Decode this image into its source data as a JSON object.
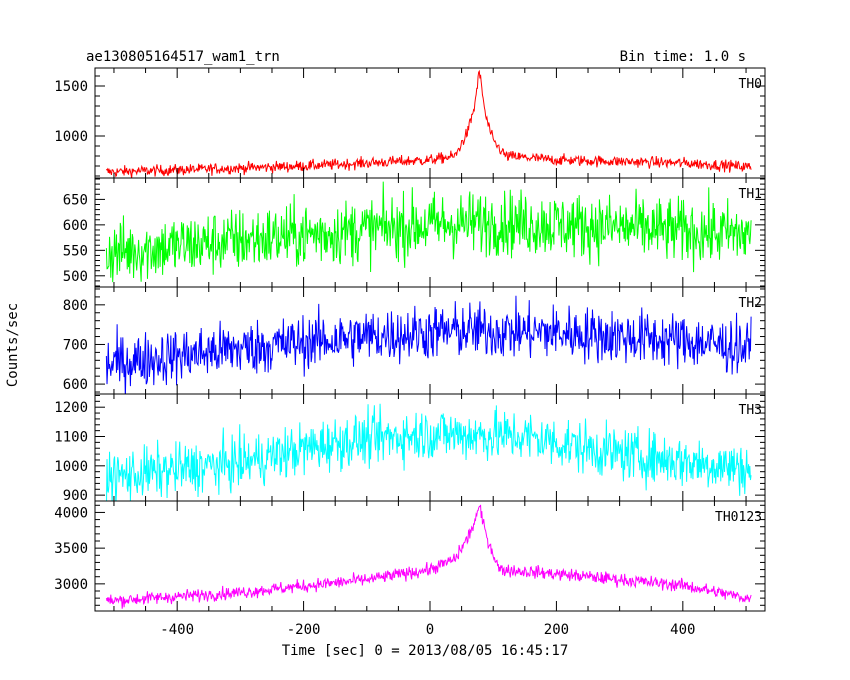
{
  "header": {
    "title": "ae130805164517_wam1_trn",
    "bin_time": "Bin time: 1.0 s"
  },
  "chart_data": {
    "type": "line",
    "title": "ae130805164517_wam1_trn",
    "xlabel": "Time [sec] 0 = 2013/08/05 16:45:17",
    "ylabel": "Counts/sec",
    "xlim": [
      -530,
      530
    ],
    "xticks": [
      -400,
      -200,
      0,
      200,
      400
    ],
    "x_sampling": {
      "start": -512,
      "end": 508,
      "step": 1
    },
    "panels": [
      {
        "label": "TH0",
        "color": "#ff0000",
        "ylim": [
          580,
          1680
        ],
        "yticks": [
          1000,
          1500
        ],
        "trend": [
          [
            -512,
            640
          ],
          [
            -400,
            660
          ],
          [
            -200,
            700
          ],
          [
            0,
            760
          ],
          [
            40,
            800
          ],
          [
            60,
            1050
          ],
          [
            70,
            1280
          ],
          [
            78,
            1650
          ],
          [
            88,
            1200
          ],
          [
            100,
            950
          ],
          [
            120,
            800
          ],
          [
            200,
            760
          ],
          [
            400,
            730
          ],
          [
            508,
            690
          ]
        ],
        "noise": 28
      },
      {
        "label": "TH1",
        "color": "#00ff00",
        "ylim": [
          478,
          692
        ],
        "yticks": [
          500,
          550,
          600,
          650
        ],
        "trend": [
          [
            -512,
            545
          ],
          [
            -300,
            570
          ],
          [
            -100,
            590
          ],
          [
            0,
            600
          ],
          [
            100,
            605
          ],
          [
            300,
            595
          ],
          [
            508,
            580
          ]
        ],
        "noise": 32
      },
      {
        "label": "TH2",
        "color": "#0000ff",
        "ylim": [
          575,
          845
        ],
        "yticks": [
          600,
          700,
          800
        ],
        "trend": [
          [
            -512,
            650
          ],
          [
            -300,
            690
          ],
          [
            -100,
            720
          ],
          [
            50,
            735
          ],
          [
            200,
            730
          ],
          [
            400,
            710
          ],
          [
            508,
            690
          ]
        ],
        "noise": 35
      },
      {
        "label": "TH3",
        "color": "#00ffff",
        "ylim": [
          880,
          1245
        ],
        "yticks": [
          900,
          1000,
          1100,
          1200
        ],
        "trend": [
          [
            -512,
            960
          ],
          [
            -300,
            1010
          ],
          [
            -150,
            1080
          ],
          [
            0,
            1110
          ],
          [
            150,
            1100
          ],
          [
            300,
            1040
          ],
          [
            508,
            990
          ]
        ],
        "noise": 45
      },
      {
        "label": "TH0123",
        "color": "#ff00ff",
        "ylim": [
          2620,
          4160
        ],
        "yticks": [
          3000,
          3500,
          4000
        ],
        "trend": [
          [
            -512,
            2760
          ],
          [
            -300,
            2880
          ],
          [
            -100,
            3060
          ],
          [
            0,
            3200
          ],
          [
            40,
            3350
          ],
          [
            60,
            3650
          ],
          [
            70,
            3850
          ],
          [
            78,
            4080
          ],
          [
            90,
            3650
          ],
          [
            110,
            3200
          ],
          [
            200,
            3140
          ],
          [
            400,
            2980
          ],
          [
            508,
            2790
          ]
        ],
        "noise": 45
      }
    ]
  }
}
